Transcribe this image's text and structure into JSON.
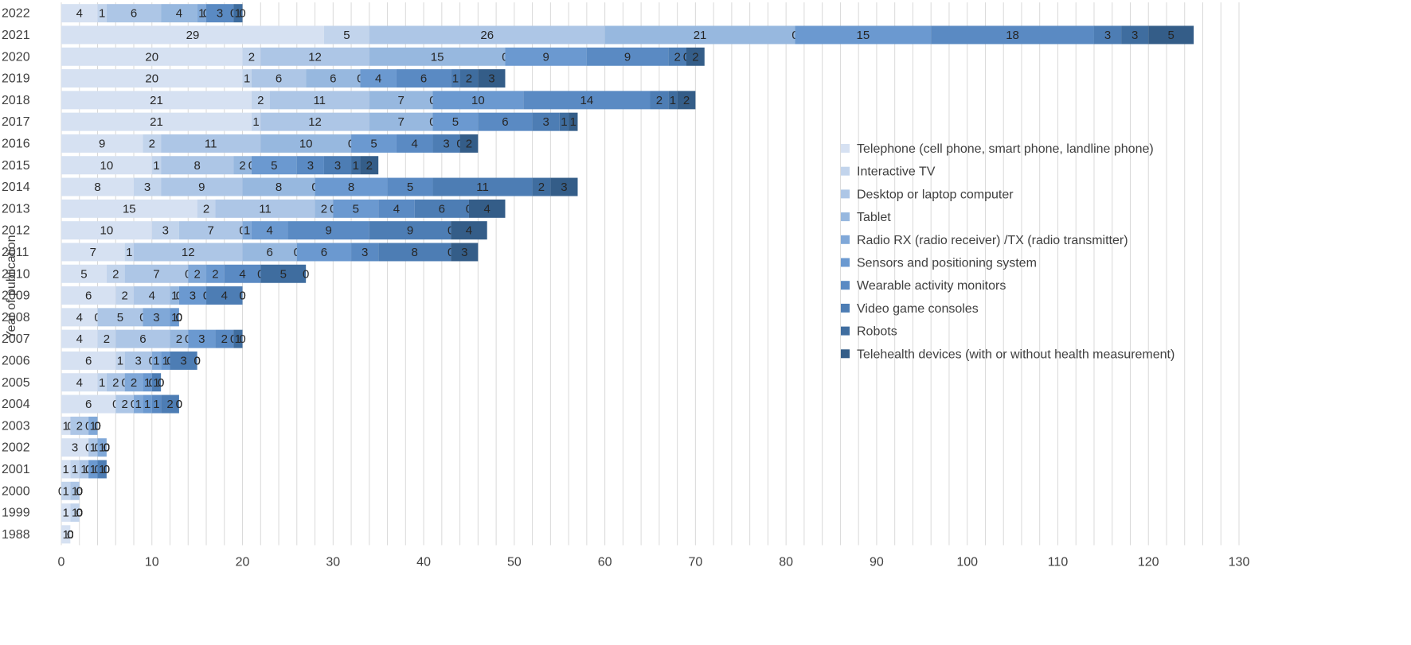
{
  "chart_data": {
    "type": "bar",
    "orientation": "horizontal",
    "stacked": true,
    "title": "",
    "xlabel": "",
    "ylabel": "Year of publication",
    "xlim": [
      0,
      130
    ],
    "x_ticks": [
      0,
      10,
      20,
      30,
      40,
      50,
      60,
      70,
      80,
      90,
      100,
      110,
      120,
      130
    ],
    "grid": "vertical",
    "legend_position": "right",
    "categories": [
      "2022",
      "2021",
      "2020",
      "2019",
      "2018",
      "2017",
      "2016",
      "2015",
      "2014",
      "2013",
      "2012",
      "2011",
      "2010",
      "2009",
      "2008",
      "2007",
      "2006",
      "2005",
      "2004",
      "2003",
      "2002",
      "2001",
      "2000",
      "1999",
      "1988"
    ],
    "series": [
      {
        "name": "Telephone (cell phone, smart phone, landline phone)",
        "color": "#d6e1f2",
        "values": [
          4,
          29,
          20,
          20,
          21,
          21,
          9,
          10,
          8,
          15,
          10,
          7,
          5,
          6,
          4,
          4,
          6,
          4,
          6,
          1,
          3,
          1,
          0,
          1,
          1
        ]
      },
      {
        "name": "Interactive TV",
        "color": "#c2d4ec",
        "values": [
          1,
          5,
          2,
          1,
          2,
          1,
          2,
          1,
          3,
          2,
          3,
          1,
          2,
          2,
          0,
          2,
          1,
          1,
          0,
          0,
          0,
          1,
          1,
          1,
          0
        ]
      },
      {
        "name": "Desktop or laptop computer",
        "color": "#adc6e6",
        "values": [
          6,
          26,
          12,
          6,
          11,
          12,
          11,
          8,
          9,
          11,
          7,
          12,
          7,
          4,
          5,
          6,
          3,
          2,
          2,
          2,
          1,
          1,
          1,
          0,
          0
        ]
      },
      {
        "name": "Tablet",
        "color": "#97b8df",
        "values": [
          4,
          21,
          15,
          6,
          7,
          7,
          10,
          2,
          8,
          2,
          0,
          6,
          0,
          1,
          0,
          2,
          0,
          0,
          0,
          0,
          0,
          0,
          0,
          0,
          0
        ]
      },
      {
        "name": "Radio RX (radio receiver) /TX (radio transmitter)",
        "color": "#80a8d8",
        "values": [
          1,
          0,
          0,
          0,
          0,
          0,
          0,
          0,
          0,
          0,
          1,
          0,
          2,
          0,
          3,
          0,
          1,
          2,
          1,
          1,
          1,
          0,
          0,
          0,
          0
        ]
      },
      {
        "name": "Sensors and positioning system",
        "color": "#6b99d0",
        "values": [
          0,
          15,
          9,
          4,
          10,
          5,
          5,
          5,
          8,
          5,
          4,
          6,
          2,
          3,
          1,
          3,
          1,
          1,
          1,
          0,
          0,
          1,
          0,
          0,
          0
        ]
      },
      {
        "name": "Wearable activity monitors",
        "color": "#5a8ac3",
        "values": [
          3,
          18,
          9,
          6,
          14,
          6,
          4,
          3,
          5,
          4,
          9,
          3,
          4,
          0,
          0,
          2,
          0,
          0,
          1,
          0,
          0,
          0,
          0,
          0,
          0
        ]
      },
      {
        "name": "Video game consoles",
        "color": "#4d7db4",
        "values": [
          0,
          3,
          2,
          1,
          2,
          3,
          3,
          3,
          11,
          6,
          9,
          8,
          0,
          4,
          0,
          0,
          3,
          1,
          2,
          0,
          0,
          1,
          0,
          0,
          0
        ]
      },
      {
        "name": "Robots",
        "color": "#3f6d9f",
        "values": [
          1,
          3,
          0,
          2,
          1,
          1,
          0,
          1,
          2,
          0,
          0,
          0,
          5,
          0,
          0,
          1,
          0,
          0,
          0,
          0,
          0,
          0,
          0,
          0,
          0
        ]
      },
      {
        "name": "Telehealth devices (with or without health measurement)",
        "color": "#345d88",
        "values": [
          0,
          5,
          2,
          3,
          2,
          1,
          2,
          2,
          3,
          4,
          4,
          3,
          0,
          0,
          0,
          0,
          0,
          0,
          0,
          0,
          0,
          0,
          0,
          0,
          0
        ]
      }
    ]
  }
}
